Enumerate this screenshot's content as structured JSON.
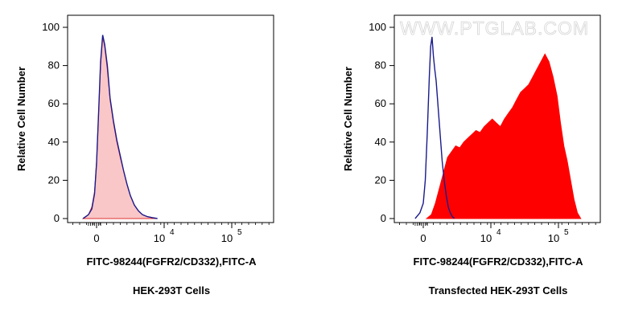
{
  "watermark": "WWW.PTGLAB.COM",
  "chart_data": [
    {
      "type": "area",
      "panel": "left",
      "xlabel": "FITC-98244(FGFR2/CD332),FITC-A",
      "ylabel": "Relative Cell Number",
      "caption": "HEK-293T Cells",
      "ylim": [
        0,
        100
      ],
      "yticks": [
        0,
        20,
        40,
        60,
        80,
        100
      ],
      "xticks": [
        {
          "label": "0",
          "sup": ""
        },
        {
          "label": "10",
          "sup": "4"
        },
        {
          "label": "10",
          "sup": "5"
        }
      ],
      "colors": {
        "fill": "#f9c7c7",
        "fill_stroke": "#e03030",
        "line": "#1a1a8c"
      },
      "series": [
        {
          "style": "filled",
          "x": [
            -0.2,
            -0.12,
            -0.07,
            -0.03,
            0.0,
            0.03,
            0.06,
            0.09,
            0.12,
            0.16,
            0.2,
            0.25,
            0.3,
            0.35,
            0.4,
            0.45,
            0.5,
            0.56,
            0.62,
            0.68,
            0.75,
            0.82,
            0.9
          ],
          "y": [
            0,
            2,
            6,
            14,
            30,
            55,
            80,
            95,
            90,
            78,
            62,
            50,
            40,
            32,
            25,
            18,
            12,
            7,
            4,
            2,
            1,
            0.5,
            0
          ]
        },
        {
          "style": "line",
          "x": [
            -0.2,
            -0.12,
            -0.07,
            -0.03,
            0.0,
            0.03,
            0.06,
            0.09,
            0.12,
            0.16,
            0.2,
            0.25,
            0.3,
            0.35,
            0.4,
            0.45,
            0.5,
            0.56,
            0.62,
            0.68,
            0.75,
            0.82,
            0.9
          ],
          "y": [
            0,
            2,
            5,
            13,
            29,
            55,
            82,
            96,
            91,
            80,
            63,
            51,
            41,
            33,
            25,
            18,
            12,
            7,
            4,
            2,
            1,
            0.5,
            0
          ]
        }
      ]
    },
    {
      "type": "area",
      "panel": "right",
      "xlabel": "FITC-98244(FGFR2/CD332),FITC-A",
      "ylabel": "Relative Cell Number",
      "caption": "Transfected HEK-293T Cells",
      "ylim": [
        0,
        100
      ],
      "yticks": [
        0,
        20,
        40,
        60,
        80,
        100
      ],
      "xticks": [
        {
          "label": "0",
          "sup": ""
        },
        {
          "label": "10",
          "sup": "4"
        },
        {
          "label": "10",
          "sup": "5"
        }
      ],
      "colors": {
        "fill": "#ff0000",
        "fill_stroke": "#ff0000",
        "line": "#1a1a8c"
      },
      "series": [
        {
          "style": "filled",
          "x": [
            0.05,
            0.12,
            0.18,
            0.24,
            0.3,
            0.36,
            0.42,
            0.48,
            0.54,
            0.6,
            0.66,
            0.72,
            0.78,
            0.84,
            0.9,
            0.96,
            1.02,
            1.08,
            1.14,
            1.2,
            1.26,
            1.32,
            1.38,
            1.44,
            1.5,
            1.56,
            1.62,
            1.68,
            1.74,
            1.8,
            1.86,
            1.92,
            1.98,
            2.03,
            2.08,
            2.13,
            2.18,
            2.23,
            2.28,
            2.33
          ],
          "y": [
            0,
            2,
            8,
            16,
            24,
            32,
            35,
            38,
            37,
            40,
            42,
            44,
            46,
            45,
            48,
            50,
            52,
            50,
            48,
            52,
            55,
            58,
            62,
            66,
            68,
            70,
            74,
            78,
            82,
            86,
            82,
            74,
            64,
            50,
            38,
            30,
            20,
            10,
            3,
            0
          ]
        },
        {
          "style": "line",
          "x": [
            -0.12,
            -0.05,
            0.0,
            0.03,
            0.06,
            0.09,
            0.11,
            0.13,
            0.15,
            0.17,
            0.19,
            0.22,
            0.25,
            0.28,
            0.31,
            0.34,
            0.37,
            0.4,
            0.43,
            0.46
          ],
          "y": [
            0,
            3,
            8,
            20,
            45,
            75,
            90,
            95,
            85,
            78,
            72,
            58,
            44,
            30,
            20,
            12,
            6,
            3,
            1,
            0
          ]
        }
      ]
    }
  ]
}
